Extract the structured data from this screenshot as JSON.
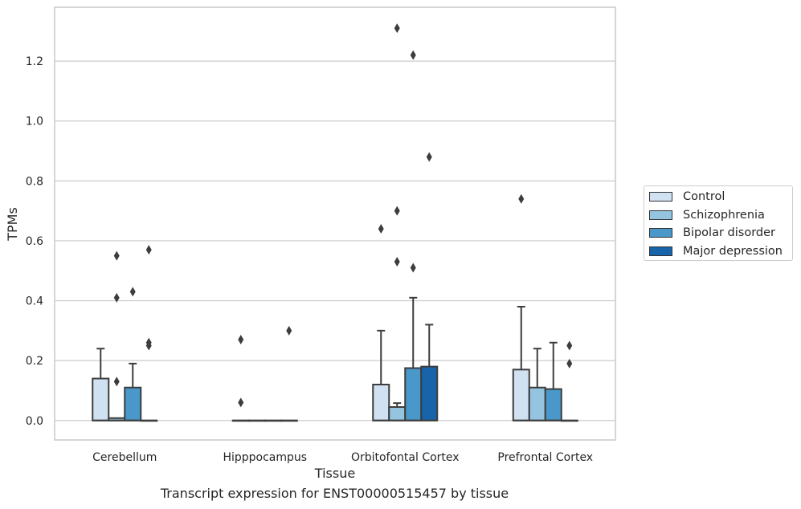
{
  "chart_data": {
    "type": "box",
    "title": "",
    "caption": "Transcript expression for ENST00000515457 by tissue",
    "xlabel": "Tissue",
    "ylabel": "TPMs",
    "ylim": [
      -0.065,
      1.38
    ],
    "yticks": [
      "0.0",
      "0.2",
      "0.4",
      "0.6",
      "0.8",
      "1.0",
      "1.2"
    ],
    "ytick_values": [
      0.0,
      0.2,
      0.4,
      0.6,
      0.8,
      1.0,
      1.2
    ],
    "grid": "horizontal",
    "legend_position": "right",
    "categories": [
      "Cerebellum",
      "Hipppocampus",
      "Orbitofontal Cortex",
      "Prefrontal Cortex"
    ],
    "series": [
      {
        "name": "Control",
        "color": "#d0e1f2",
        "boxes": [
          {
            "q1": 0.0,
            "median": 0.0,
            "q3": 0.14,
            "whisker_low": 0.0,
            "whisker_high": 0.24,
            "outliers": []
          },
          {
            "q1": 0.0,
            "median": 0.0,
            "q3": 0.0,
            "whisker_low": 0.0,
            "whisker_high": 0.0,
            "outliers": [
              0.27,
              0.06
            ]
          },
          {
            "q1": 0.0,
            "median": 0.0,
            "q3": 0.12,
            "whisker_low": 0.0,
            "whisker_high": 0.3,
            "outliers": [
              0.64
            ]
          },
          {
            "q1": 0.0,
            "median": 0.0,
            "q3": 0.17,
            "whisker_low": 0.0,
            "whisker_high": 0.38,
            "outliers": [
              0.74
            ]
          }
        ]
      },
      {
        "name": "Schizophrenia",
        "color": "#94c4df",
        "boxes": [
          {
            "q1": 0.0,
            "median": 0.0,
            "q3": 0.008,
            "whisker_low": 0.0,
            "whisker_high": 0.008,
            "outliers": [
              0.55,
              0.41,
              0.13
            ]
          },
          {
            "q1": 0.0,
            "median": 0.0,
            "q3": 0.0,
            "whisker_low": 0.0,
            "whisker_high": 0.0,
            "outliers": []
          },
          {
            "q1": 0.0,
            "median": 0.0,
            "q3": 0.045,
            "whisker_low": 0.0,
            "whisker_high": 0.058,
            "outliers": [
              1.31,
              0.7,
              0.53
            ]
          },
          {
            "q1": 0.0,
            "median": 0.0,
            "q3": 0.11,
            "whisker_low": 0.0,
            "whisker_high": 0.24,
            "outliers": []
          }
        ]
      },
      {
        "name": "Bipolar disorder",
        "color": "#4a98c9",
        "boxes": [
          {
            "q1": 0.0,
            "median": 0.0,
            "q3": 0.11,
            "whisker_low": 0.0,
            "whisker_high": 0.19,
            "outliers": [
              0.43
            ]
          },
          {
            "q1": 0.0,
            "median": 0.0,
            "q3": 0.0,
            "whisker_low": 0.0,
            "whisker_high": 0.0,
            "outliers": []
          },
          {
            "q1": 0.0,
            "median": 0.0,
            "q3": 0.175,
            "whisker_low": 0.0,
            "whisker_high": 0.41,
            "outliers": [
              1.22,
              0.51
            ]
          },
          {
            "q1": 0.0,
            "median": 0.0,
            "q3": 0.105,
            "whisker_low": 0.0,
            "whisker_high": 0.26,
            "outliers": []
          }
        ]
      },
      {
        "name": "Major depression",
        "color": "#1764ab",
        "boxes": [
          {
            "q1": 0.0,
            "median": 0.0,
            "q3": 0.0,
            "whisker_low": 0.0,
            "whisker_high": 0.0,
            "outliers": [
              0.57,
              0.26,
              0.25
            ]
          },
          {
            "q1": 0.0,
            "median": 0.0,
            "q3": 0.0,
            "whisker_low": 0.0,
            "whisker_high": 0.0,
            "outliers": [
              0.3
            ]
          },
          {
            "q1": 0.0,
            "median": 0.0,
            "q3": 0.18,
            "whisker_low": 0.0,
            "whisker_high": 0.32,
            "outliers": [
              0.88
            ]
          },
          {
            "q1": 0.0,
            "median": 0.0,
            "q3": 0.0,
            "whisker_low": 0.0,
            "whisker_high": 0.0,
            "outliers": [
              0.25,
              0.19
            ]
          }
        ]
      }
    ]
  }
}
